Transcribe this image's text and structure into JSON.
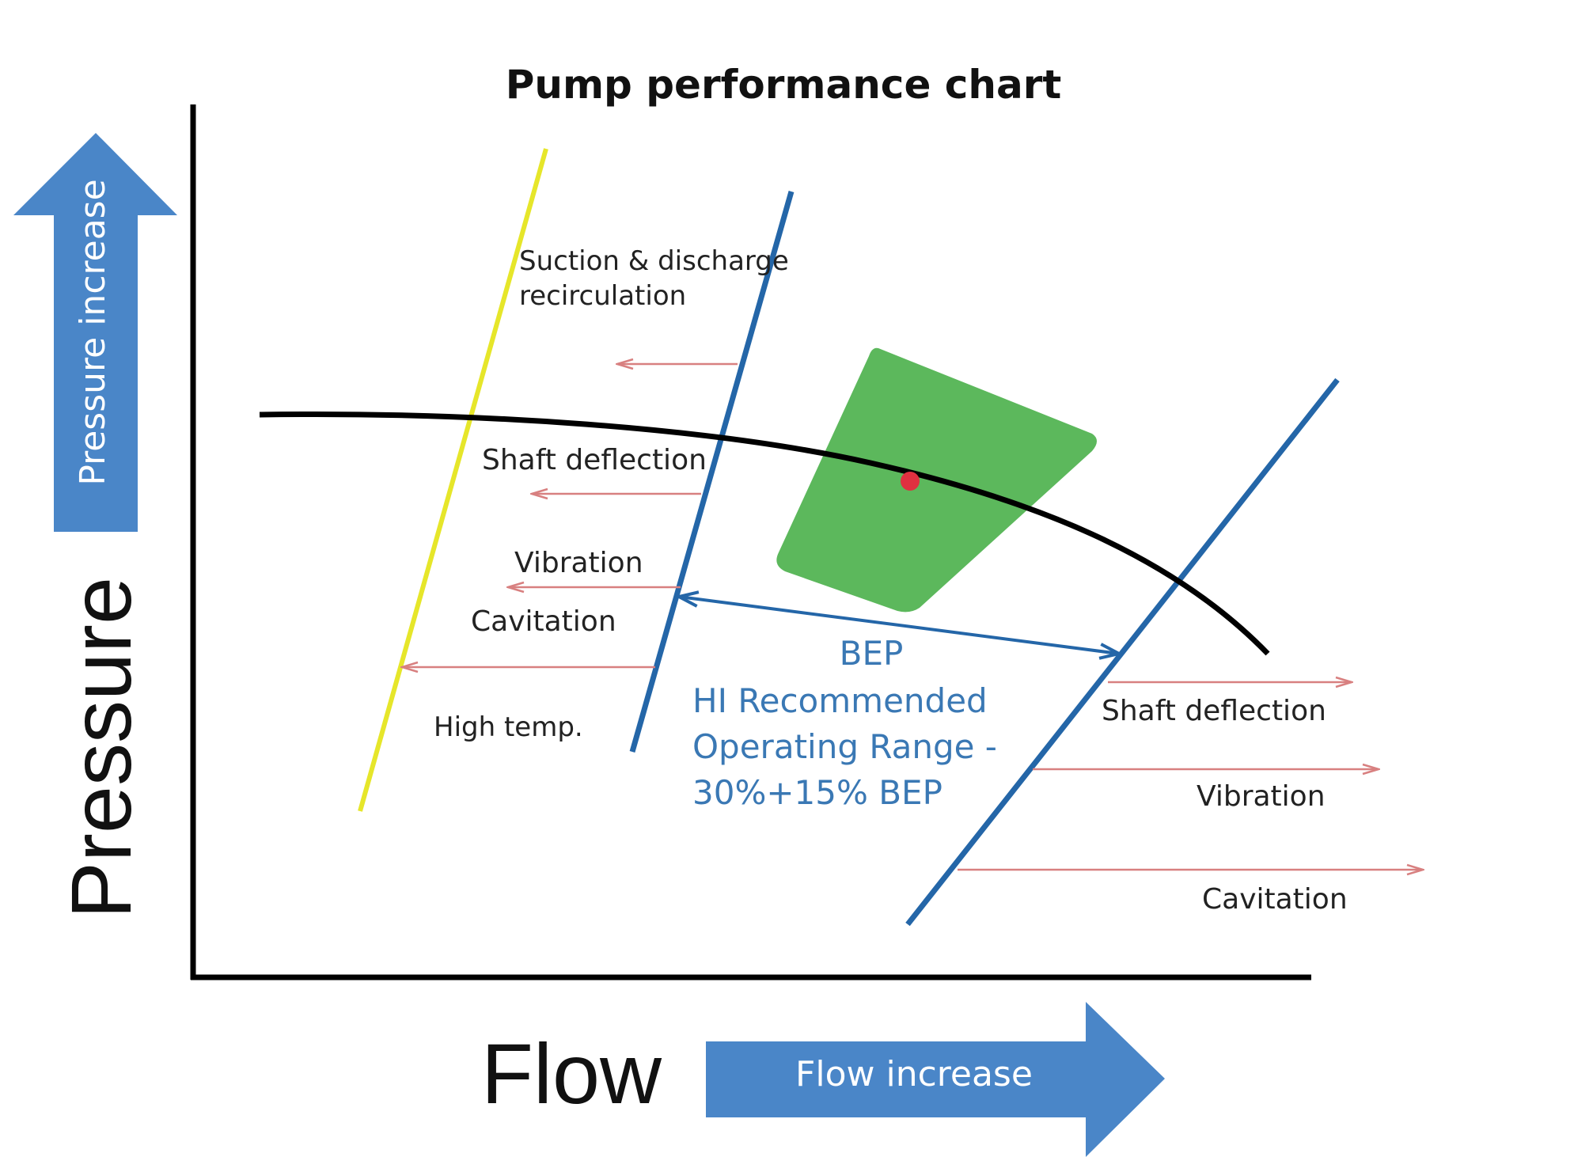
{
  "title": "Pump performance chart",
  "axes": {
    "x_label": "Flow",
    "y_label": "Pressure",
    "x_arrow_label": "Flow increase",
    "y_arrow_label": "Pressure increase"
  },
  "left_zone": {
    "recirculation_line1": "Suction & discharge",
    "recirculation_line2": "recirculation",
    "shaft_deflection": "Shaft deflection",
    "vibration": "Vibration",
    "cavitation": "Cavitation",
    "high_temp": "High temp."
  },
  "right_zone": {
    "shaft_deflection": "Shaft deflection",
    "vibration": "Vibration",
    "cavitation": "Cavitation"
  },
  "bep": {
    "label": "BEP",
    "range_line1": "HI Recommended",
    "range_line2": "Operating Range -",
    "range_line3": "30%+15% BEP"
  },
  "colors": {
    "accent_blue": "#4a86c8",
    "boundary_blue": "#2466a8",
    "yellow_line": "#e6e62a",
    "green_region": "#5cb85c",
    "bep_point": "#e03040",
    "warning_arrow": "#d88080",
    "bep_text": "#3a78b4"
  }
}
